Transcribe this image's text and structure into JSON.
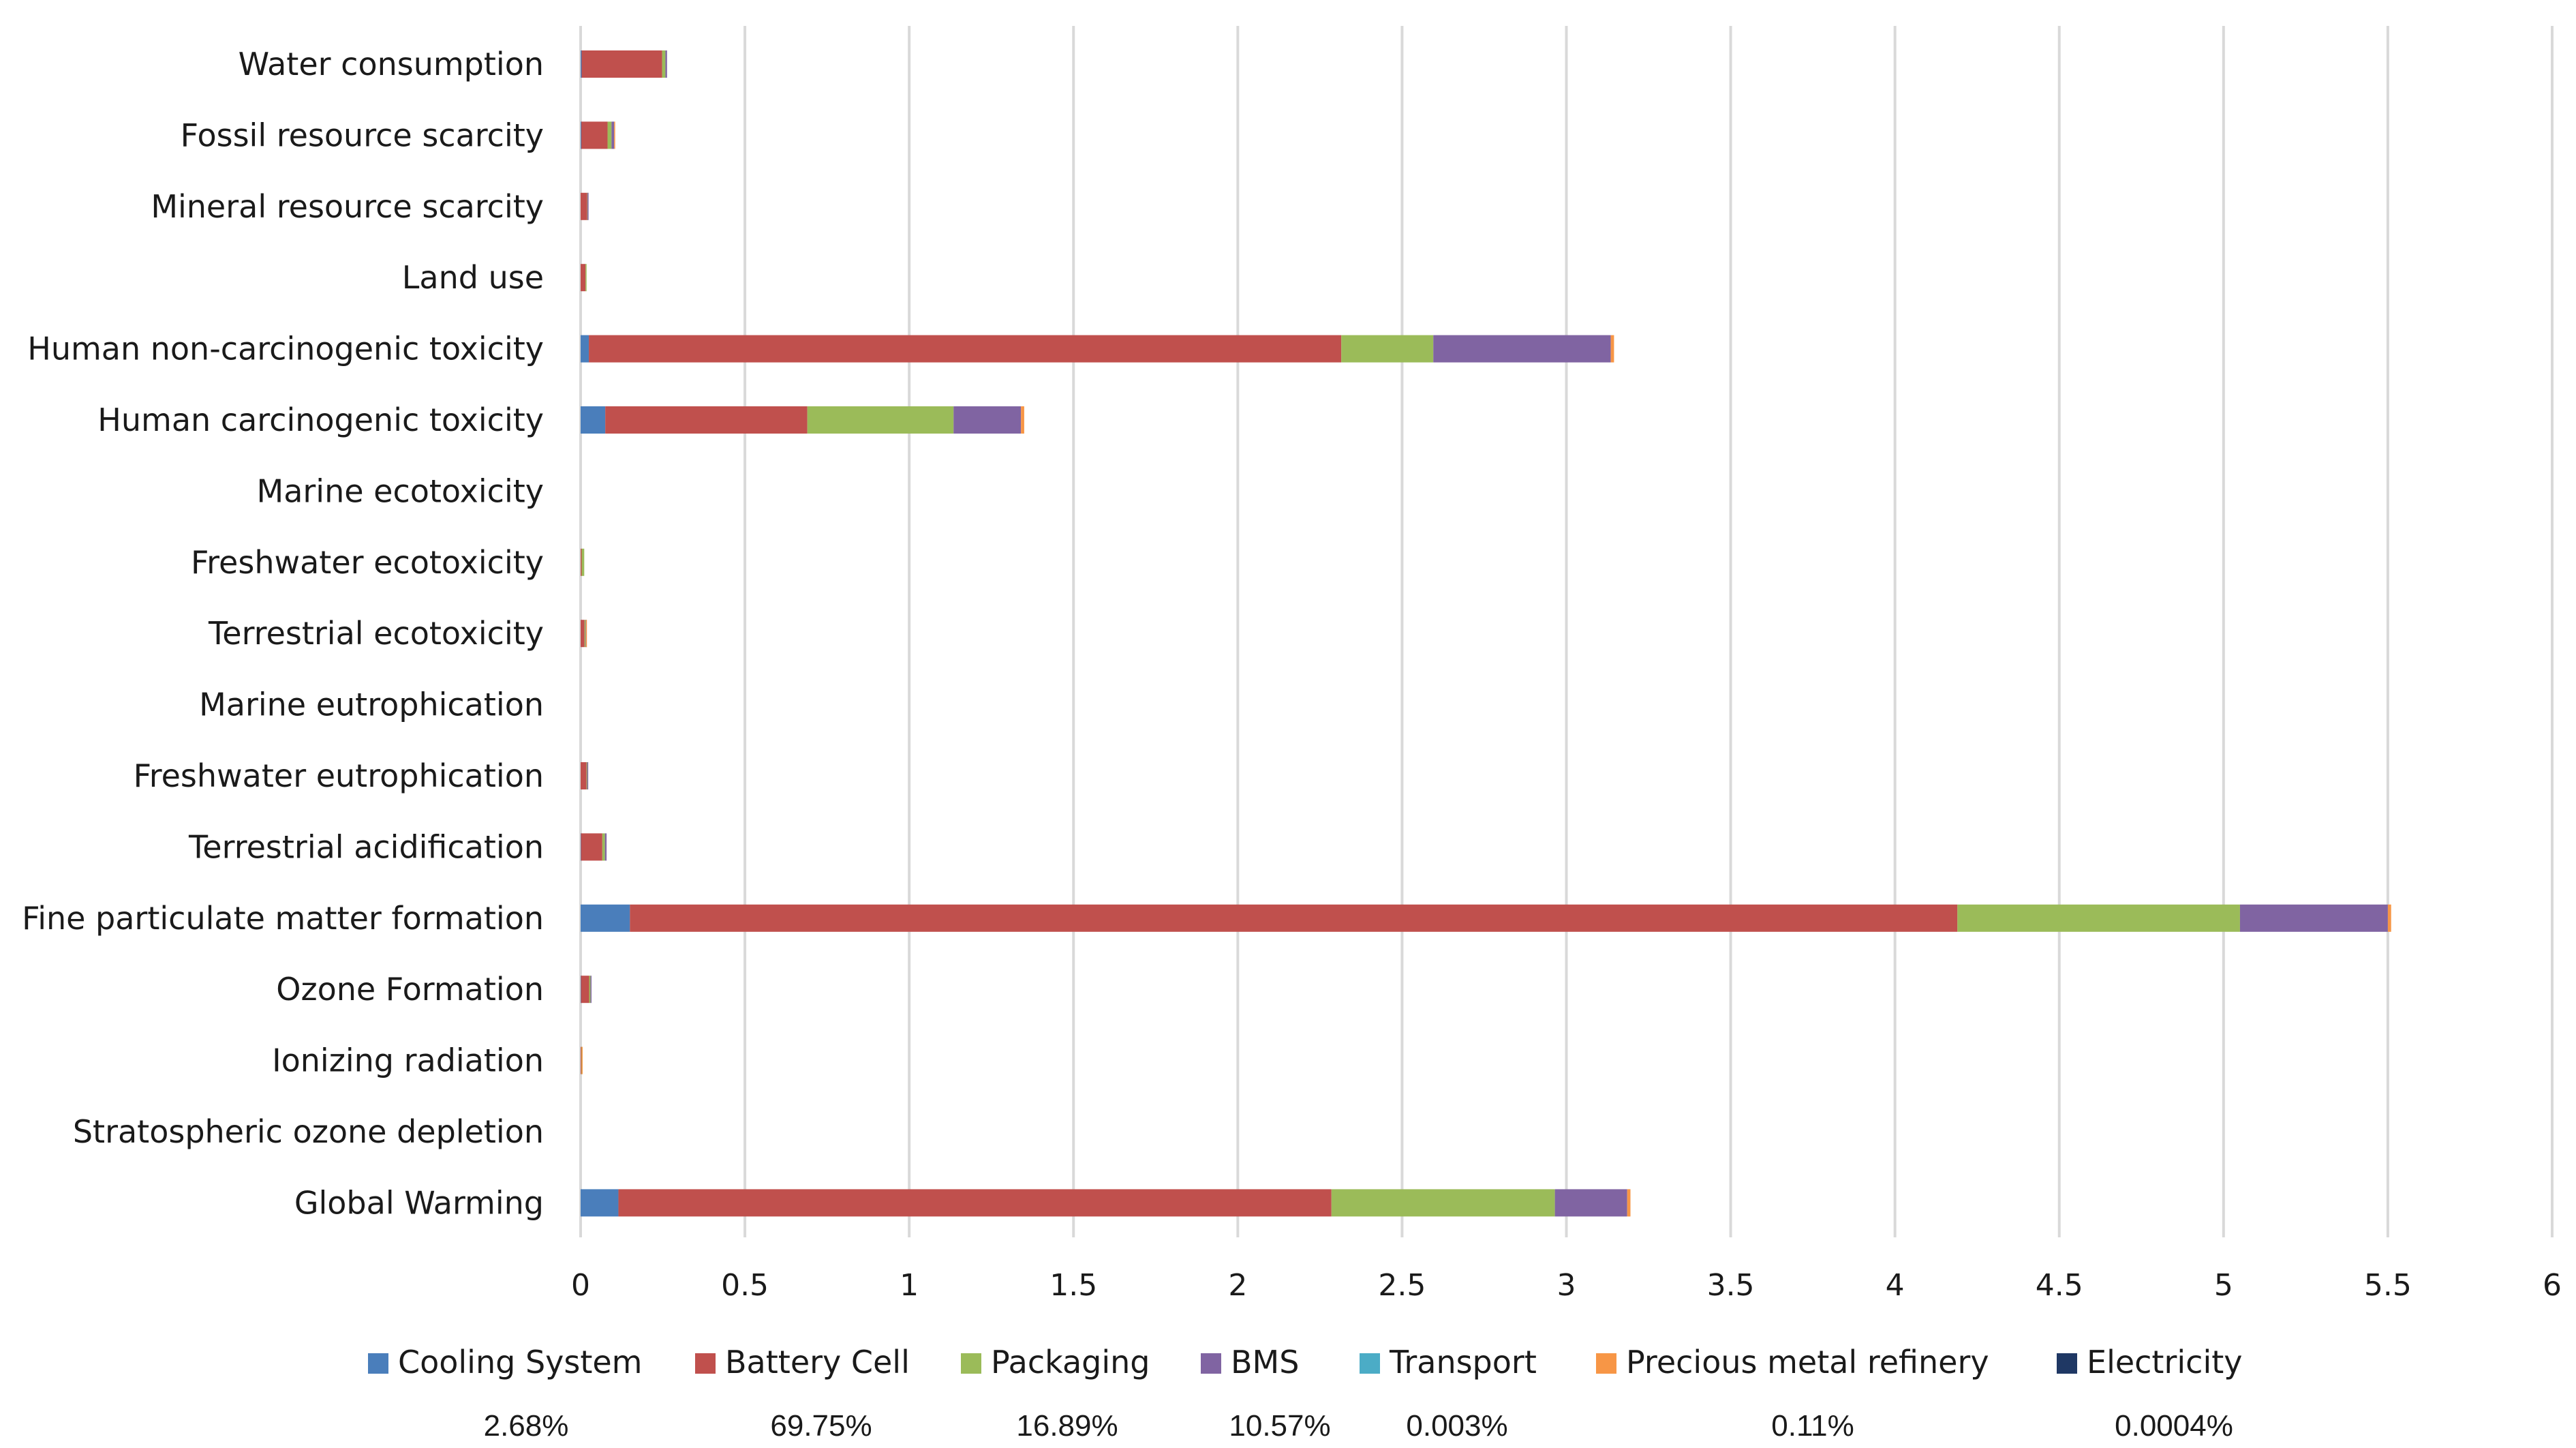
{
  "chart_data": {
    "type": "bar",
    "orientation": "horizontal",
    "stacked": true,
    "title": "",
    "xlabel": "",
    "ylabel": "",
    "xlim": [
      0,
      6
    ],
    "x_ticks": [
      "0",
      "0.5",
      "1",
      "1.5",
      "2",
      "2.5",
      "3",
      "3.5",
      "4",
      "4.5",
      "5",
      "5.5",
      "6"
    ],
    "grid": "vertical",
    "legend_position": "bottom",
    "categories": [
      "Water consumption",
      "Fossil resource scarcity",
      "Mineral resource scarcity",
      "Land use",
      "Human non-carcinogenic toxicity",
      "Human carcinogenic toxicity",
      "Marine ecotoxicity",
      "Freshwater ecotoxicity",
      "Terrestrial ecotoxicity",
      "Marine eutrophication",
      "Freshwater eutrophication",
      "Terrestrial acidification",
      "Fine particulate matter formation",
      "Ozone Formation",
      "Ionizing radiation",
      "Stratospheric ozone depletion",
      "Global Warming"
    ],
    "series": [
      {
        "name": "Cooling System",
        "color": "#4a7ebb",
        "share": "2.68%",
        "values": [
          0.003,
          0.002,
          0,
          0,
          0.025,
          0.075,
          0,
          0,
          0,
          0,
          0,
          0.001,
          0.15,
          0.001,
          0,
          0,
          0.115
        ]
      },
      {
        "name": "Battery Cell",
        "color": "#c0504d",
        "share": "69.75%",
        "values": [
          0.245,
          0.08,
          0.02,
          0.015,
          2.29,
          0.615,
          0,
          0.003,
          0.012,
          0,
          0.018,
          0.065,
          4.04,
          0.025,
          0.002,
          0,
          2.17
        ]
      },
      {
        "name": "Packaging",
        "color": "#9bbb59",
        "share": "16.89%",
        "values": [
          0.01,
          0.012,
          0.001,
          0.001,
          0.28,
          0.445,
          0,
          0.008,
          0.003,
          0,
          0.002,
          0.008,
          0.86,
          0.004,
          0.001,
          0,
          0.68
        ]
      },
      {
        "name": "BMS",
        "color": "#8064a2",
        "share": "10.57%",
        "values": [
          0.005,
          0.008,
          0.001,
          0,
          0.54,
          0.205,
          0,
          0,
          0.001,
          0,
          0.001,
          0.005,
          0.45,
          0.003,
          0,
          0,
          0.22
        ]
      },
      {
        "name": "Transport",
        "color": "#4bacc6",
        "share": "0.003%",
        "values": [
          0,
          0,
          0,
          0,
          0,
          0,
          0,
          0,
          0,
          0,
          0,
          0,
          0,
          0,
          0,
          0,
          0
        ]
      },
      {
        "name": "Precious metal refinery",
        "color": "#f79646",
        "share": "0.11%",
        "values": [
          0,
          0.001,
          0,
          0,
          0.01,
          0.01,
          0,
          0,
          0.003,
          0,
          0,
          0,
          0.01,
          0,
          0.001,
          0,
          0.01
        ]
      },
      {
        "name": "Electricity",
        "color": "#1f3864",
        "share": "0.0004%",
        "values": [
          0,
          0,
          0,
          0,
          0,
          0,
          0,
          0,
          0,
          0,
          0,
          0,
          0,
          0,
          0,
          0,
          0
        ]
      }
    ]
  }
}
